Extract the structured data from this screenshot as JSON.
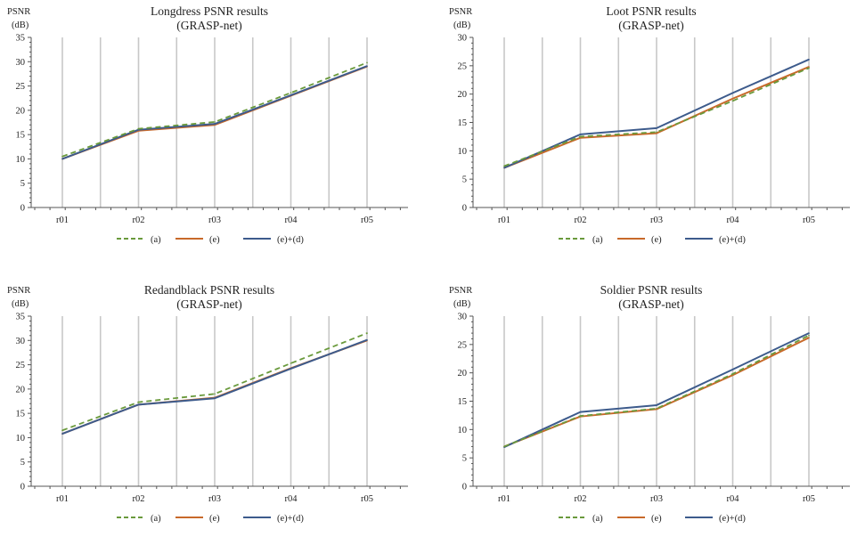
{
  "colors": {
    "a": "#6a9a3c",
    "e": "#c8692a",
    "ed": "#3d5b8c",
    "grid": "#c8c8c8",
    "axis": "#555555"
  },
  "chart_data": [
    {
      "type": "line",
      "title": "Longdress PSNR results",
      "subtitle": "(GRASP-net)",
      "ylabel_top": "PSNR",
      "ylabel_bottom": "(dB)",
      "categories": [
        "r01",
        "r02",
        "r03",
        "r04",
        "r05"
      ],
      "ylim": [
        0,
        35
      ],
      "yticks": [
        0,
        5,
        10,
        15,
        20,
        25,
        30,
        35
      ],
      "legend_position": "bottom",
      "series": [
        {
          "name": "(a)",
          "style": "dashed",
          "values": [
            10.5,
            16.2,
            17.6,
            23.6,
            29.8
          ]
        },
        {
          "name": "(e)",
          "style": "solid",
          "values": [
            10.0,
            15.8,
            17.0,
            23.0,
            29.0
          ]
        },
        {
          "name": "(e)+(d)",
          "style": "solid",
          "values": [
            10.0,
            16.0,
            17.2,
            23.1,
            29.1
          ]
        }
      ]
    },
    {
      "type": "line",
      "title": "Loot PSNR results",
      "subtitle": "(GRASP-net)",
      "ylabel_top": "PSNR",
      "ylabel_bottom": "(dB)",
      "categories": [
        "r01",
        "r02",
        "r03",
        "r04",
        "r05"
      ],
      "ylim": [
        0,
        30
      ],
      "yticks": [
        0,
        5,
        10,
        15,
        20,
        25,
        30
      ],
      "legend_position": "bottom",
      "series": [
        {
          "name": "(a)",
          "style": "dashed",
          "values": [
            7.3,
            12.5,
            13.3,
            18.8,
            24.6
          ]
        },
        {
          "name": "(e)",
          "style": "solid",
          "values": [
            7.0,
            12.3,
            13.1,
            19.2,
            24.8
          ]
        },
        {
          "name": "(e)+(d)",
          "style": "solid",
          "values": [
            7.0,
            12.9,
            14.0,
            20.2,
            26.1
          ]
        }
      ]
    },
    {
      "type": "line",
      "title": "Redandblack PSNR results",
      "subtitle": "(GRASP-net)",
      "ylabel_top": "PSNR",
      "ylabel_bottom": "(dB)",
      "categories": [
        "r01",
        "r02",
        "r03",
        "r04",
        "r05"
      ],
      "ylim": [
        0,
        35
      ],
      "yticks": [
        0,
        5,
        10,
        15,
        20,
        25,
        30,
        35
      ],
      "legend_position": "bottom",
      "series": [
        {
          "name": "(a)",
          "style": "dashed",
          "values": [
            11.5,
            17.3,
            19.0,
            25.3,
            31.5
          ]
        },
        {
          "name": "(e)",
          "style": "solid",
          "values": [
            10.8,
            16.8,
            18.2,
            24.3,
            30.0
          ]
        },
        {
          "name": "(e)+(d)",
          "style": "solid",
          "values": [
            10.8,
            16.8,
            18.1,
            24.2,
            30.1
          ]
        }
      ]
    },
    {
      "type": "line",
      "title": "Soldier PSNR results",
      "subtitle": "(GRASP-net)",
      "ylabel_top": "PSNR",
      "ylabel_bottom": "(dB)",
      "categories": [
        "r01",
        "r02",
        "r03",
        "r04",
        "r05"
      ],
      "ylim": [
        0,
        30
      ],
      "yticks": [
        0,
        5,
        10,
        15,
        20,
        25,
        30
      ],
      "legend_position": "bottom",
      "series": [
        {
          "name": "(a)",
          "style": "dashed",
          "values": [
            7.0,
            12.4,
            13.7,
            19.8,
            26.6
          ]
        },
        {
          "name": "(e)",
          "style": "solid",
          "values": [
            7.0,
            12.3,
            13.6,
            19.6,
            26.2
          ]
        },
        {
          "name": "(e)+(d)",
          "style": "solid",
          "values": [
            6.9,
            13.1,
            14.3,
            20.6,
            27.0
          ]
        }
      ]
    }
  ]
}
